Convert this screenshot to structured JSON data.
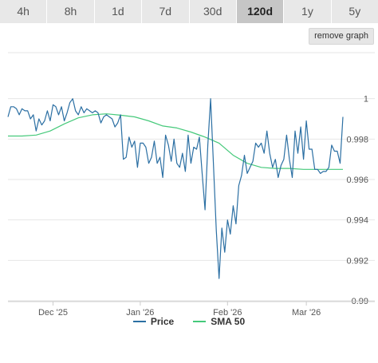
{
  "tabs": [
    {
      "label": "4h",
      "active": false
    },
    {
      "label": "8h",
      "active": false
    },
    {
      "label": "1d",
      "active": false
    },
    {
      "label": "7d",
      "active": false
    },
    {
      "label": "30d",
      "active": false
    },
    {
      "label": "120d",
      "active": true
    },
    {
      "label": "1y",
      "active": false
    },
    {
      "label": "5y",
      "active": false
    }
  ],
  "remove_graph_label": "remove graph",
  "colors": {
    "price": "#2b6fa3",
    "sma": "#45c97a"
  },
  "chart_data": {
    "type": "line",
    "title": "",
    "xlabel": "",
    "ylabel": "",
    "x_range": [
      "2025-11-15",
      "2026-03-14"
    ],
    "ylim": [
      0.99,
      1.0005
    ],
    "y_ticks": [
      {
        "value": 0.99,
        "label": "0.99"
      },
      {
        "value": 0.992,
        "label": "0.992"
      },
      {
        "value": 0.994,
        "label": "0.994"
      },
      {
        "value": 0.996,
        "label": "0.996"
      },
      {
        "value": 0.998,
        "label": "0.998"
      },
      {
        "value": 1.0,
        "label": "1"
      }
    ],
    "x_ticks": [
      {
        "date": "2025-12-01",
        "label": "Dec '25"
      },
      {
        "date": "2026-01-01",
        "label": "Jan '26"
      },
      {
        "date": "2026-02-01",
        "label": "Feb '26"
      },
      {
        "date": "2026-03-01",
        "label": "Mar '26"
      }
    ],
    "legend_position": "bottom-center",
    "grid": true,
    "series": [
      {
        "name": "Price",
        "x": [
          "2025-11-15",
          "2025-11-16",
          "2025-11-17",
          "2025-11-18",
          "2025-11-19",
          "2025-11-20",
          "2025-11-21",
          "2025-11-22",
          "2025-11-23",
          "2025-11-24",
          "2025-11-25",
          "2025-11-26",
          "2025-11-27",
          "2025-11-28",
          "2025-11-29",
          "2025-11-30",
          "2025-12-01",
          "2025-12-02",
          "2025-12-03",
          "2025-12-04",
          "2025-12-05",
          "2025-12-06",
          "2025-12-07",
          "2025-12-08",
          "2025-12-09",
          "2025-12-10",
          "2025-12-11",
          "2025-12-12",
          "2025-12-13",
          "2025-12-14",
          "2025-12-15",
          "2025-12-16",
          "2025-12-17",
          "2025-12-18",
          "2025-12-19",
          "2025-12-20",
          "2025-12-21",
          "2025-12-22",
          "2025-12-23",
          "2025-12-24",
          "2025-12-25",
          "2025-12-26",
          "2025-12-27",
          "2025-12-28",
          "2025-12-29",
          "2025-12-30",
          "2025-12-31",
          "2026-01-01",
          "2026-01-02",
          "2026-01-03",
          "2026-01-04",
          "2026-01-05",
          "2026-01-06",
          "2026-01-07",
          "2026-01-08",
          "2026-01-09",
          "2026-01-10",
          "2026-01-11",
          "2026-01-12",
          "2026-01-13",
          "2026-01-14",
          "2026-01-15",
          "2026-01-16",
          "2026-01-17",
          "2026-01-18",
          "2026-01-19",
          "2026-01-20",
          "2026-01-21",
          "2026-01-22",
          "2026-01-23",
          "2026-01-24",
          "2026-01-25",
          "2026-01-26",
          "2026-01-27",
          "2026-01-28",
          "2026-01-29",
          "2026-01-30",
          "2026-01-31",
          "2026-02-01",
          "2026-02-02",
          "2026-02-03",
          "2026-02-04",
          "2026-02-05",
          "2026-02-06",
          "2026-02-07",
          "2026-02-08",
          "2026-02-09",
          "2026-02-10",
          "2026-02-11",
          "2026-02-12",
          "2026-02-13",
          "2026-02-14",
          "2026-02-15",
          "2026-02-16",
          "2026-02-17",
          "2026-02-18",
          "2026-02-19",
          "2026-02-20",
          "2026-02-21",
          "2026-02-22",
          "2026-02-23",
          "2026-02-24",
          "2026-02-25",
          "2026-02-26",
          "2026-02-27",
          "2026-02-28",
          "2026-03-01",
          "2026-03-02",
          "2026-03-03",
          "2026-03-04",
          "2026-03-05",
          "2026-03-06",
          "2026-03-07",
          "2026-03-08",
          "2026-03-09",
          "2026-03-10",
          "2026-03-11",
          "2026-03-12",
          "2026-03-13",
          "2026-03-14"
        ],
        "values": [
          0.9991,
          0.9996,
          0.9996,
          0.9995,
          0.9992,
          0.9995,
          0.9994,
          0.9994,
          0.999,
          0.9992,
          0.9984,
          0.999,
          0.9987,
          0.9989,
          0.9994,
          0.9989,
          0.9997,
          0.9996,
          0.9992,
          0.9996,
          0.9989,
          0.9993,
          0.9998,
          1.0,
          0.9994,
          0.9992,
          0.9996,
          0.9993,
          0.9995,
          0.9994,
          0.9993,
          0.9994,
          0.9993,
          0.9988,
          0.9991,
          0.9992,
          0.9991,
          0.999,
          0.9986,
          0.9988,
          0.9992,
          0.997,
          0.9971,
          0.9981,
          0.9976,
          0.9979,
          0.9966,
          0.9978,
          0.9978,
          0.9976,
          0.9968,
          0.9971,
          0.9979,
          0.9968,
          0.9971,
          0.9961,
          0.9982,
          0.9977,
          0.9969,
          0.998,
          0.9968,
          0.9966,
          0.9973,
          0.9964,
          0.9982,
          0.9968,
          0.9976,
          0.9975,
          0.9981,
          0.9963,
          0.9945,
          0.9977,
          1.0,
          0.9968,
          0.9935,
          0.9911,
          0.9936,
          0.9924,
          0.994,
          0.9933,
          0.9947,
          0.9938,
          0.9957,
          0.9962,
          0.9972,
          0.9963,
          0.9966,
          0.9969,
          0.9978,
          0.9976,
          0.9978,
          0.9973,
          0.9984,
          0.9973,
          0.9966,
          0.997,
          0.9961,
          0.9967,
          0.997,
          0.9982,
          0.997,
          0.9961,
          0.9984,
          0.9973,
          0.9986,
          0.997,
          0.9989,
          0.9975,
          0.9975,
          0.9965,
          0.9965,
          0.9963,
          0.9964,
          0.9964,
          0.9966,
          0.9977,
          0.9974,
          0.9974,
          0.9968,
          0.9991
        ]
      },
      {
        "name": "SMA 50",
        "x": [
          "2025-11-15",
          "2025-11-20",
          "2025-11-25",
          "2025-11-30",
          "2025-12-05",
          "2025-12-10",
          "2025-12-15",
          "2025-12-20",
          "2025-12-25",
          "2025-12-30",
          "2026-01-04",
          "2026-01-09",
          "2026-01-14",
          "2026-01-19",
          "2026-01-24",
          "2026-01-29",
          "2026-02-03",
          "2026-02-08",
          "2026-02-13",
          "2026-02-18",
          "2026-02-23",
          "2026-02-28",
          "2026-03-05",
          "2026-03-10",
          "2026-03-14"
        ],
        "values": [
          0.99815,
          0.99815,
          0.9982,
          0.9984,
          0.99875,
          0.99905,
          0.9992,
          0.99925,
          0.99918,
          0.9991,
          0.9989,
          0.99865,
          0.99855,
          0.99835,
          0.9981,
          0.9978,
          0.9972,
          0.9968,
          0.9966,
          0.99655,
          0.99655,
          0.9965,
          0.9965,
          0.9965,
          0.9965
        ]
      }
    ]
  }
}
